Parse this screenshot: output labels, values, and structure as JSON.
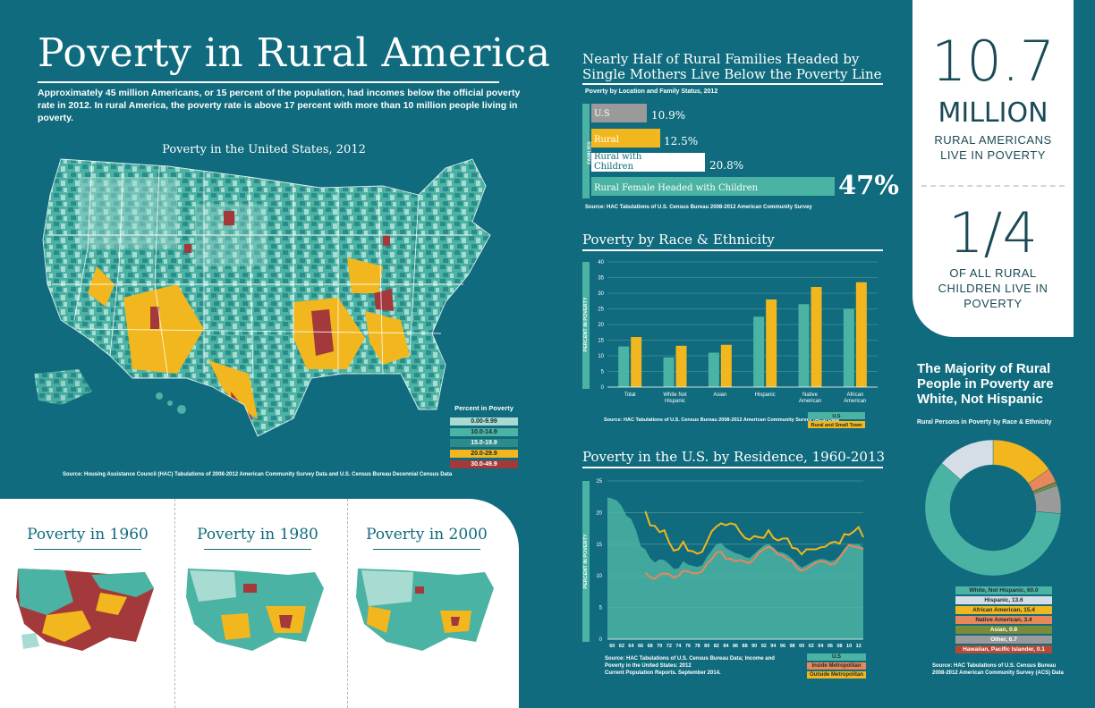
{
  "title": "Poverty in Rural America",
  "intro": "Approximately 45 million Americans, or 15 percent of the population, had incomes below the official poverty rate in 2012. In rural America, the poverty rate is above 17 percent with more than 10 million people living in poverty.",
  "map": {
    "title": "Poverty in the United States, 2012",
    "source": "Source: Housing Assistance Council (HAC) Tabulations of 2008-2012 American Community Survey Data and U.S. Census Bureau Decennial Census Data",
    "legend_title": "Percent in Poverty",
    "legend": [
      {
        "label": "0.00-9.99",
        "color": "#a8dcd2"
      },
      {
        "label": "10.0-14.9",
        "color": "#4bb3a3"
      },
      {
        "label": "15.0-19.9",
        "color": "#2c8c8c"
      },
      {
        "label": "20.0-29.9",
        "color": "#f2b71e"
      },
      {
        "label": "30.0-49.9",
        "color": "#a3393a"
      }
    ]
  },
  "historical": [
    {
      "title": "Poverty in 1960"
    },
    {
      "title": "Poverty in 1980"
    },
    {
      "title": "Poverty in 2000"
    }
  ],
  "families": {
    "title_line1": "Nearly Half of Rural Families Headed by",
    "title_line2": "Single Mothers Live Below the Poverty Line",
    "subtitle": "Poverty by Location and Family Status, 2012",
    "axis_label": "FAMILIES",
    "source": "Source: HAC Tabulations of U.S. Census Bureau 2008-2012 American Community Survey",
    "bars": [
      {
        "label": "U.S",
        "value_text": "10.9%",
        "value": 10.9,
        "color": "#9a9a9a"
      },
      {
        "label": "Rural",
        "value_text": "12.5%",
        "value": 12.5,
        "color": "#f2b71e"
      },
      {
        "label": "Rural with Children",
        "value_text": "20.8%",
        "value": 20.8,
        "color": "#ffffff"
      },
      {
        "label": "Rural Female Headed with Children",
        "value_text": "47%",
        "value": 47,
        "color": "#4bb3a3"
      }
    ]
  },
  "race": {
    "title": "Poverty by Race & Ethnicity",
    "ylabel": "PERCENT IN POVERTY",
    "source": "Source: HAC Tabulations of U.S. Census Bureau 2008-2012 American Community Survey (ACS) Data",
    "legend": [
      "U.S",
      "Rural and Small Town"
    ]
  },
  "residence": {
    "title": "Poverty in the U.S. by Residence, 1960-2013",
    "ylabel": "PERCENT IN POVERTY",
    "source_line1": "Source: HAC Tabulations of U.S. Census Bureau Data; Income and",
    "source_line2": "Poverty in the United States: 2012",
    "source_line3": "Current Population Reports. September 2014.",
    "legend": [
      "U.S",
      "Inside Metropolitan",
      "Outside Metropolitan"
    ]
  },
  "stats": {
    "num1": "10.7",
    "num1_unit": "MILLION",
    "num1_cap1": "RURAL AMERICANS",
    "num1_cap2": "LIVE IN POVERTY",
    "num2": "1/4",
    "num2_cap1": "OF ALL  RURAL",
    "num2_cap2": "CHILDREN LIVE IN",
    "num2_cap3": "POVERTY"
  },
  "majority": {
    "title_line1": "The Majority of Rural",
    "title_line2": "People in Poverty are",
    "title_line3": "White, Not Hispanic",
    "subtitle": "Rural Persons in Poverty by Race & Ethnicity",
    "source_line1": "Source: HAC Tabulations of U.S. Census Bureau",
    "source_line2": "2008-2012 American Community Survey (ACS) Data"
  },
  "chart_data": [
    {
      "type": "bar",
      "title": "Poverty by Location and Family Status, 2012",
      "categories": [
        "U.S",
        "Rural",
        "Rural with Children",
        "Rural Female Headed with Children"
      ],
      "values": [
        10.9,
        12.5,
        20.8,
        47
      ]
    },
    {
      "type": "bar",
      "title": "Poverty by Race & Ethnicity",
      "categories": [
        "Total",
        "White Not Hispanic",
        "Asian",
        "Hispanic",
        "Native American",
        "African American"
      ],
      "series": [
        {
          "name": "U.S",
          "color": "#4bb3a3",
          "values": [
            13,
            9.5,
            11,
            22.5,
            26.5,
            25
          ]
        },
        {
          "name": "Rural and Small Town",
          "color": "#f2b71e",
          "values": [
            16,
            13.2,
            13.5,
            28,
            32,
            33.5
          ]
        }
      ],
      "ylim": [
        0,
        40
      ],
      "yticks": [
        0,
        5,
        10,
        15,
        20,
        25,
        30,
        35,
        40
      ],
      "ylabel": "PERCENT IN POVERTY"
    },
    {
      "type": "line",
      "title": "Poverty in the U.S. by Residence, 1960-2013",
      "ylabel": "PERCENT IN POVERTY",
      "ylim": [
        0,
        25
      ],
      "yticks": [
        0,
        5,
        10,
        15,
        20,
        25
      ],
      "xlim": [
        1959,
        2013
      ],
      "xticks": [
        "60",
        "62",
        "64",
        "66",
        "68",
        "70",
        "72",
        "74",
        "76",
        "78",
        "80",
        "82",
        "84",
        "86",
        "88",
        "90",
        "92",
        "94",
        "96",
        "98",
        "00",
        "02",
        "04",
        "06",
        "08",
        "10",
        "12"
      ],
      "series": [
        {
          "name": "U.S",
          "color": "#4bb3a3",
          "fill": true,
          "x": [
            1959,
            1960,
            1961,
            1962,
            1963,
            1964,
            1965,
            1966,
            1967,
            1968,
            1969,
            1970,
            1971,
            1972,
            1973,
            1974,
            1975,
            1976,
            1977,
            1978,
            1979,
            1980,
            1981,
            1982,
            1983,
            1984,
            1985,
            1986,
            1987,
            1988,
            1989,
            1990,
            1991,
            1992,
            1993,
            1994,
            1995,
            1996,
            1997,
            1998,
            1999,
            2000,
            2001,
            2002,
            2003,
            2004,
            2005,
            2006,
            2007,
            2008,
            2009,
            2010,
            2011,
            2012,
            2013
          ],
          "y": [
            22.4,
            22.2,
            21.9,
            21.0,
            19.5,
            19.0,
            17.3,
            14.7,
            14.2,
            12.8,
            12.1,
            12.6,
            12.5,
            11.9,
            11.1,
            11.2,
            12.3,
            11.8,
            11.6,
            11.4,
            11.7,
            13.0,
            14.0,
            15.0,
            15.2,
            14.4,
            14.0,
            13.6,
            13.4,
            13.0,
            12.8,
            13.5,
            14.2,
            14.8,
            15.1,
            14.5,
            13.8,
            13.7,
            13.3,
            12.7,
            11.9,
            11.3,
            11.7,
            12.1,
            12.5,
            12.7,
            12.6,
            12.3,
            12.5,
            13.2,
            14.3,
            15.1,
            15.0,
            15.0,
            14.5
          ]
        },
        {
          "name": "Inside Metropolitan",
          "color": "#e8875a",
          "x": [
            1967,
            1968,
            1969,
            1970,
            1971,
            1972,
            1973,
            1974,
            1975,
            1976,
            1977,
            1978,
            1979,
            1980,
            1981,
            1982,
            1983,
            1984,
            1985,
            1986,
            1987,
            1988,
            1989,
            1990,
            1991,
            1992,
            1993,
            1994,
            1995,
            1996,
            1997,
            1998,
            1999,
            2000,
            2001,
            2002,
            2003,
            2004,
            2005,
            2006,
            2007,
            2008,
            2009,
            2010,
            2011,
            2012,
            2013
          ],
          "y": [
            10.5,
            9.8,
            9.5,
            10.2,
            10.4,
            10.3,
            9.7,
            10.0,
            10.8,
            10.7,
            10.4,
            10.4,
            10.7,
            11.9,
            12.6,
            13.7,
            13.8,
            12.7,
            12.7,
            12.3,
            12.5,
            12.2,
            12.0,
            12.7,
            13.7,
            14.2,
            14.6,
            14.2,
            13.4,
            13.2,
            12.6,
            12.3,
            11.2,
            10.8,
            11.1,
            11.6,
            12.1,
            12.3,
            12.2,
            11.8,
            11.9,
            12.9,
            13.9,
            14.9,
            14.6,
            14.5,
            14.2
          ]
        },
        {
          "name": "Outside Metropolitan",
          "color": "#f2b71e",
          "x": [
            1967,
            1968,
            1969,
            1970,
            1971,
            1972,
            1973,
            1974,
            1975,
            1976,
            1977,
            1978,
            1979,
            1980,
            1981,
            1982,
            1983,
            1984,
            1985,
            1986,
            1987,
            1988,
            1989,
            1990,
            1991,
            1992,
            1993,
            1994,
            1995,
            1996,
            1997,
            1998,
            1999,
            2000,
            2001,
            2002,
            2003,
            2004,
            2005,
            2006,
            2007,
            2008,
            2009,
            2010,
            2011,
            2012,
            2013
          ],
          "y": [
            20.2,
            18.0,
            17.9,
            16.9,
            17.2,
            15.3,
            14.0,
            14.2,
            15.4,
            14.0,
            13.9,
            13.5,
            13.8,
            15.4,
            17.0,
            17.8,
            18.3,
            18.0,
            18.3,
            18.1,
            16.9,
            16.0,
            15.7,
            16.3,
            16.1,
            16.0,
            17.2,
            16.0,
            15.6,
            15.9,
            15.9,
            14.4,
            14.3,
            13.4,
            14.2,
            14.2,
            14.2,
            14.5,
            14.6,
            15.2,
            15.4,
            15.1,
            16.6,
            16.5,
            17.0,
            17.7,
            16.1
          ]
        }
      ]
    },
    {
      "type": "pie",
      "title": "Rural Persons in Poverty by Race & Ethnicity",
      "categories": [
        "White, Not Hispanic",
        "Hispanic",
        "African American",
        "Native American",
        "Asian",
        "Other",
        "Hawaiian, Pacific Islander"
      ],
      "values": [
        60.0,
        13.6,
        15.4,
        3.4,
        0.8,
        6.7,
        0.1
      ],
      "labels": [
        "White, Not Hispanic, 60.0",
        "Hispanic, 13.6",
        "African American, 15.4",
        "Native American, 3.4",
        "Asian, 0.8",
        "Other, 6.7",
        "Hawaiian, Pacific Islander, 0.1"
      ],
      "colors": [
        "#4bb3a3",
        "#d5dde6",
        "#f2b71e",
        "#e8875a",
        "#7a8c3a",
        "#9a9a9a",
        "#b24a36"
      ]
    }
  ]
}
